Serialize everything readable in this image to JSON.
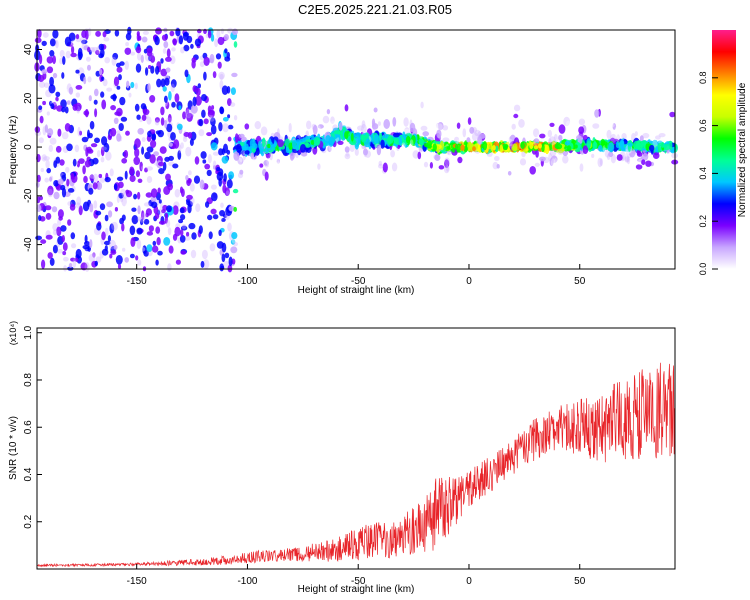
{
  "figure": {
    "title": "C2E5.2025.221.21.03.R05"
  },
  "chart_data": [
    {
      "type": "heatmap",
      "xlabel": "Height of straight line (km)",
      "ylabel": "Frequency (Hz)",
      "xlim": [
        -195,
        93
      ],
      "ylim": [
        -50,
        48
      ],
      "x_ticks": [
        -150,
        -100,
        -50,
        0,
        50
      ],
      "y_ticks": [
        -40,
        -20,
        0,
        20,
        40
      ],
      "grid": false,
      "colorbar": {
        "label": "Normalized spectral amplitude",
        "range": [
          0,
          1
        ],
        "ticks": [
          "0.0",
          "0.2",
          "0.4",
          "0.6",
          "0.8"
        ],
        "colormap": [
          "#ffffff",
          "#c8a6ff",
          "#7a00ff",
          "#0000ff",
          "#00c8ff",
          "#00ff96",
          "#00ff00",
          "#c8ff00",
          "#ffff00",
          "#ff8000",
          "#ff0000",
          "#ff1e8c"
        ]
      },
      "trace": [
        {
          "x": -195,
          "y": 0,
          "spread": 40,
          "amp": 0.25
        },
        {
          "x": -140,
          "y": 0,
          "spread": 40,
          "amp": 0.3
        },
        {
          "x": -107,
          "y": 0,
          "spread": 40,
          "amp": 0.3
        },
        {
          "x": -105,
          "y": 0,
          "spread": 4,
          "amp": 0.55
        },
        {
          "x": -90,
          "y": 0,
          "spread": 4,
          "amp": 0.6
        },
        {
          "x": -75,
          "y": 1,
          "spread": 3,
          "amp": 0.6
        },
        {
          "x": -62,
          "y": 3,
          "spread": 3,
          "amp": 0.6
        },
        {
          "x": -58,
          "y": 7,
          "spread": 3,
          "amp": 0.65
        },
        {
          "x": -52,
          "y": 3,
          "spread": 3,
          "amp": 0.6
        },
        {
          "x": -40,
          "y": 3,
          "spread": 3,
          "amp": 0.62
        },
        {
          "x": -25,
          "y": 3,
          "spread": 2,
          "amp": 0.65
        },
        {
          "x": -15,
          "y": 0,
          "spread": 2,
          "amp": 0.8
        },
        {
          "x": 0,
          "y": 0,
          "spread": 1.5,
          "amp": 0.95
        },
        {
          "x": 40,
          "y": 0,
          "spread": 1.5,
          "amp": 0.95
        },
        {
          "x": 50,
          "y": 1,
          "spread": 2,
          "amp": 0.65
        },
        {
          "x": 93,
          "y": 0,
          "spread": 2,
          "amp": 0.6
        }
      ]
    },
    {
      "type": "line",
      "xlabel": "Height of straight line (km)",
      "ylabel": "SNR (10 * v/v)",
      "scale_label": "(x10⁴)",
      "xlim": [
        -195,
        93
      ],
      "ylim": [
        0,
        1.02
      ],
      "x_ticks": [
        -150,
        -100,
        -50,
        0,
        50
      ],
      "y_ticks": [
        "0.2",
        "0.4",
        "0.6",
        "0.8",
        "1.0"
      ],
      "grid": false,
      "series": [
        {
          "color": "#e8252a",
          "envelope_x": [
            -195,
            -150,
            -120,
            -105,
            -100,
            -80,
            -60,
            -50,
            -40,
            -30,
            -20,
            -15,
            -10,
            -5,
            0,
            10,
            20,
            30,
            40,
            50,
            60,
            70,
            80,
            88,
            93
          ],
          "envelope_y": [
            0.015,
            0.02,
            0.03,
            0.04,
            0.05,
            0.06,
            0.08,
            0.11,
            0.12,
            0.14,
            0.18,
            0.24,
            0.26,
            0.3,
            0.34,
            0.4,
            0.48,
            0.55,
            0.6,
            0.6,
            0.6,
            0.63,
            0.66,
            0.67,
            0.66
          ],
          "noise_y": [
            0.005,
            0.006,
            0.015,
            0.02,
            0.025,
            0.03,
            0.05,
            0.07,
            0.08,
            0.09,
            0.12,
            0.16,
            0.14,
            0.1,
            0.08,
            0.08,
            0.08,
            0.09,
            0.09,
            0.12,
            0.15,
            0.18,
            0.2,
            0.22,
            0.2
          ]
        }
      ]
    }
  ]
}
